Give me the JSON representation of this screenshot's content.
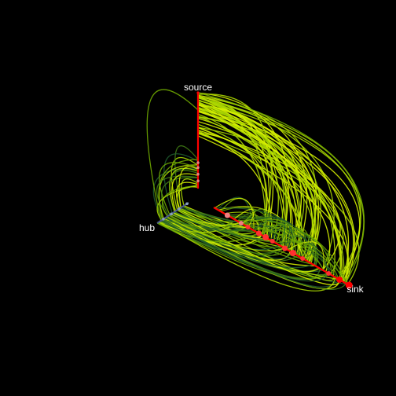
{
  "diagram": {
    "type": "hive-plot",
    "axes": [
      {
        "id": "source",
        "label": "source",
        "color": "#ff0000"
      },
      {
        "id": "hub",
        "label": "hub",
        "color": "#4a5a8a"
      },
      {
        "id": "sink",
        "label": "sink",
        "color": "#ff0000"
      }
    ],
    "edge_colors": [
      "#d4ee00",
      "#a6d400",
      "#6fa800",
      "#3f7a14",
      "#1f5a2e"
    ],
    "node_colors": {
      "small": "#f08080",
      "medium": "#ff3030",
      "large": "#ff0000",
      "hub_nodes": "#8aa0c0"
    }
  }
}
